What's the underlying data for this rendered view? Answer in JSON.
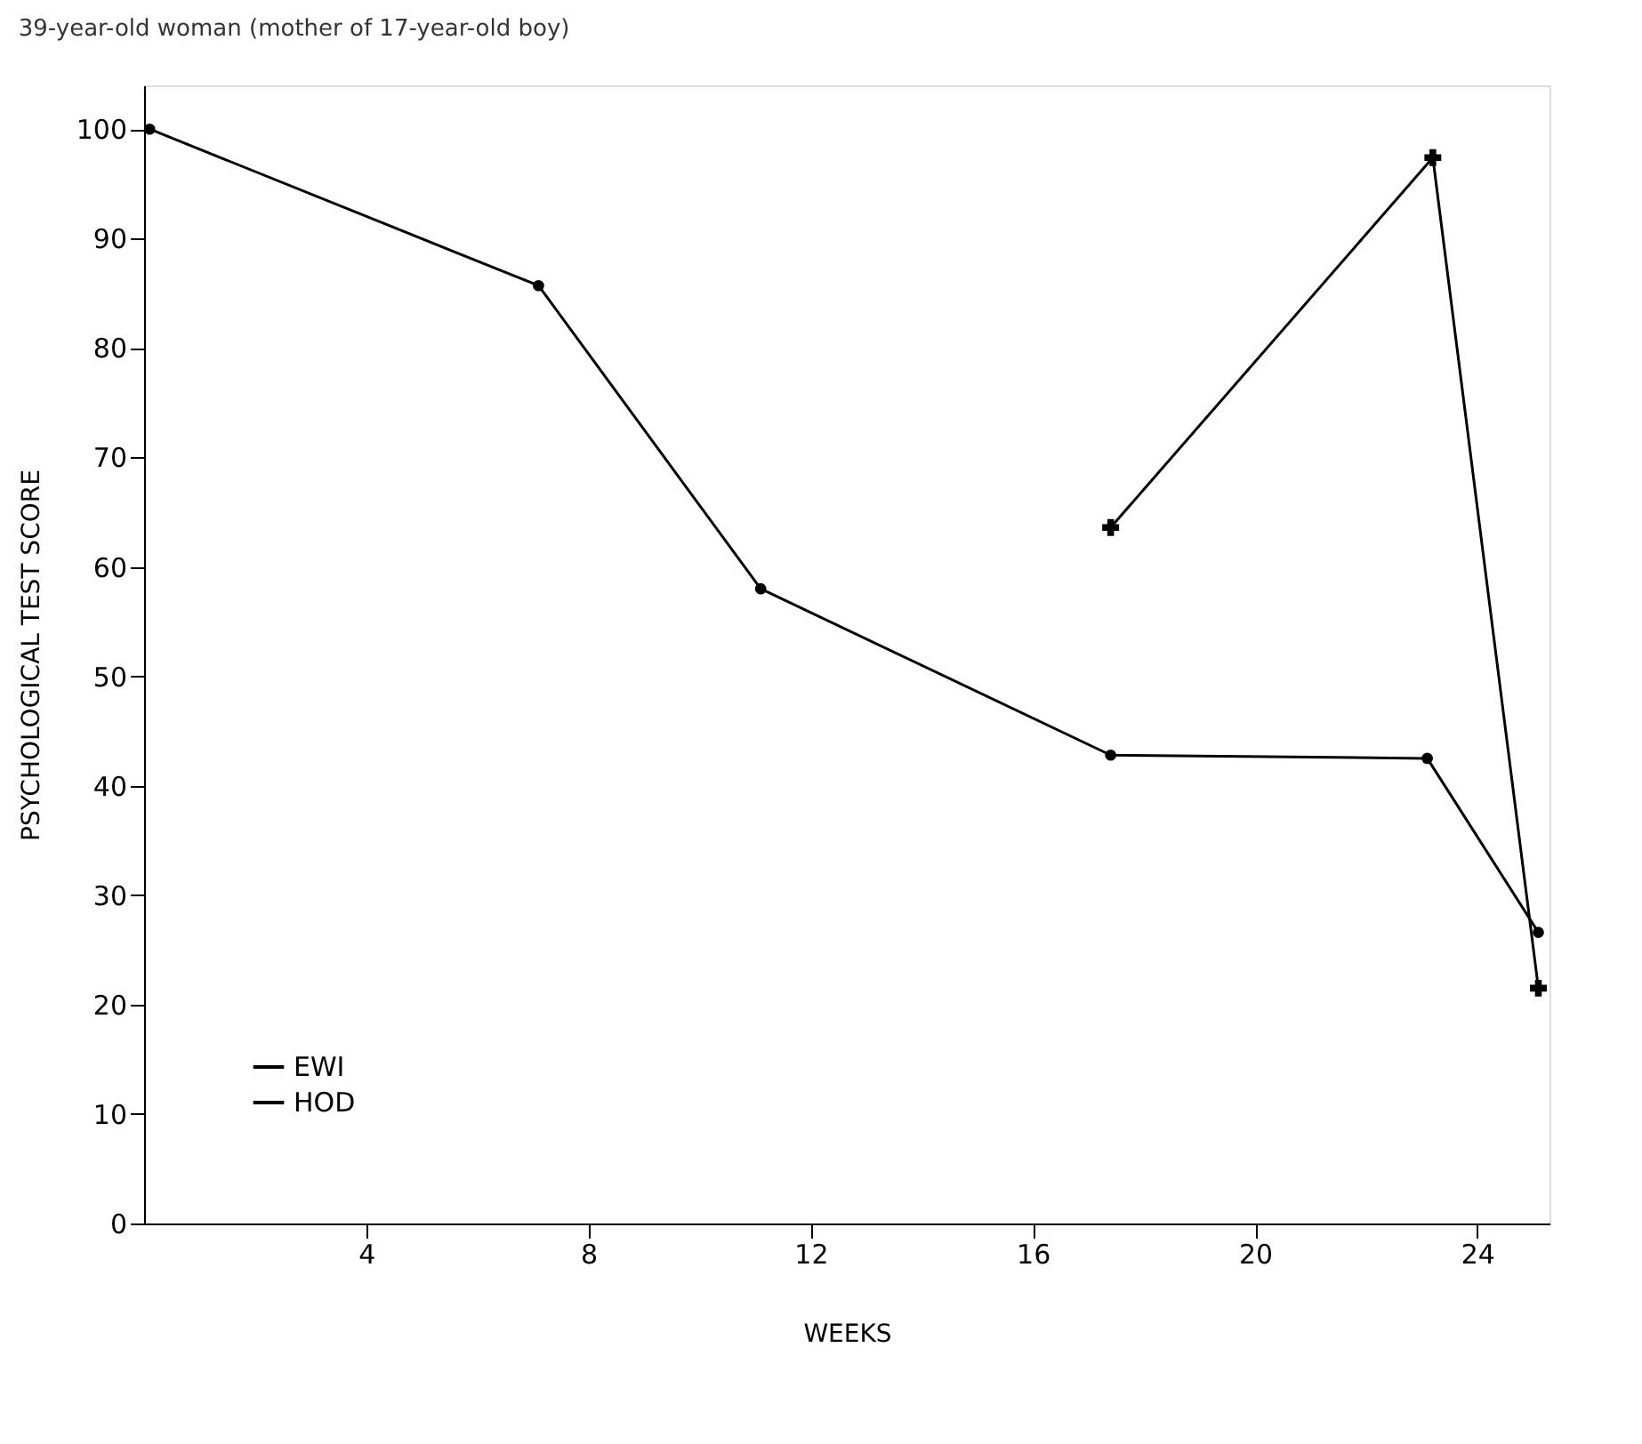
{
  "chart_data": {
    "type": "line",
    "title": "39-year-old woman (mother of 17-year-old boy)",
    "xlabel": "WEEKS",
    "ylabel": "PSYCHOLOGICAL TEST SCORE",
    "xlim": [
      0,
      25.3
    ],
    "xticks": [
      4,
      8,
      12,
      16,
      20,
      24
    ],
    "ylim": [
      0,
      104
    ],
    "yticks": [
      0,
      10,
      20,
      30,
      40,
      50,
      60,
      70,
      80,
      90,
      100
    ],
    "grid": false,
    "legend": "bottom left",
    "series": [
      {
        "name": "EWI",
        "color": "#000000",
        "marker": "cross",
        "x": [
          17.4,
          23.2,
          25.1
        ],
        "values": [
          63.6,
          97.4,
          21.5
        ]
      },
      {
        "name": "HOD",
        "color": "#000000",
        "marker": "circle",
        "x": [
          0.1,
          7.1,
          11.1,
          17.4,
          23.1,
          25.1
        ],
        "values": [
          100,
          85.7,
          58,
          42.8,
          42.5,
          26.6
        ]
      }
    ]
  }
}
